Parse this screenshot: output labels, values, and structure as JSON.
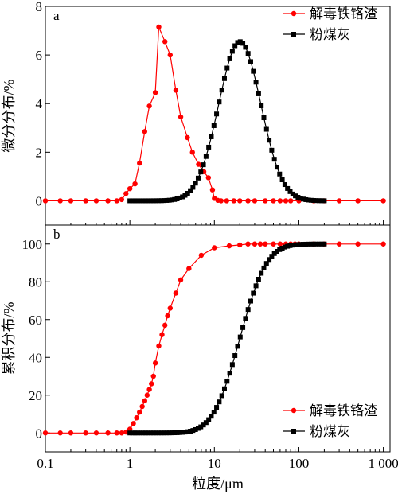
{
  "chart_data": [
    {
      "type": "line",
      "panel_label": "a",
      "ylabel": "微分分布/%",
      "xscale": "log",
      "xlim": [
        0.1,
        1200
      ],
      "ylim": [
        -1,
        8
      ],
      "yticks": [
        0,
        2,
        4,
        6,
        8
      ],
      "legend_position": "top-right",
      "series": [
        {
          "name": "解毒铁铬渣",
          "color": "#ff0000",
          "marker": "circle",
          "x": [
            0.1,
            0.15,
            0.2,
            0.3,
            0.4,
            0.55,
            0.7,
            0.8,
            0.9,
            1.0,
            1.15,
            1.3,
            1.5,
            1.7,
            2.0,
            2.2,
            2.6,
            3.0,
            3.5,
            4.0,
            4.8,
            5.5,
            6.5,
            7.5,
            8.5,
            9.5,
            10,
            11,
            12,
            14,
            17,
            20,
            25,
            30,
            40,
            50,
            60,
            70,
            80,
            100,
            150,
            200,
            300,
            500,
            1000
          ],
          "y": [
            0,
            0,
            0,
            0,
            0,
            0,
            0,
            0.05,
            0.3,
            0.5,
            0.7,
            1.55,
            2.85,
            3.9,
            4.45,
            7.15,
            6.55,
            6.0,
            4.55,
            3.45,
            2.6,
            2.0,
            1.5,
            1.2,
            0.95,
            0.45,
            0.1,
            0.02,
            0,
            0,
            0,
            0,
            0,
            0,
            0,
            0,
            0,
            0,
            0,
            0,
            0,
            0,
            0,
            0,
            0
          ]
        },
        {
          "name": "粉煤灰",
          "color": "#000000",
          "marker": "square",
          "mu": 20,
          "sigma_ln": 0.575,
          "peak": 6.55,
          "n_points": 75
        }
      ]
    },
    {
      "type": "line",
      "panel_label": "b",
      "ylabel": "累积分布/%",
      "xlabel": "粒度/μm",
      "xscale": "log",
      "xlim": [
        0.1,
        1200
      ],
      "ylim": [
        -10,
        110
      ],
      "yticks": [
        0,
        20,
        40,
        60,
        80,
        100
      ],
      "xticks": [
        0.1,
        1,
        10,
        100,
        1000
      ],
      "xticklabels": [
        "0.1",
        "1",
        "10",
        "100",
        "1 000"
      ],
      "legend_position": "bottom-right",
      "series": [
        {
          "name": "解毒铁铬渣",
          "color": "#ff0000",
          "marker": "circle",
          "x": [
            0.1,
            0.15,
            0.2,
            0.3,
            0.4,
            0.55,
            0.7,
            0.8,
            0.9,
            1.0,
            1.1,
            1.2,
            1.3,
            1.4,
            1.5,
            1.6,
            1.7,
            1.8,
            1.9,
            2.0,
            2.2,
            2.4,
            2.6,
            2.8,
            3.0,
            3.5,
            4.0,
            5.0,
            7.0,
            10,
            15,
            20,
            25,
            30,
            35,
            40,
            50,
            60,
            70,
            80,
            90,
            100,
            150,
            200,
            300,
            500,
            1000
          ],
          "y": [
            0,
            0,
            0,
            0,
            0,
            0,
            0,
            0,
            0.5,
            2,
            5,
            8,
            11,
            14,
            17,
            20,
            23,
            26,
            30,
            37,
            46,
            52,
            57,
            62,
            66,
            74,
            81,
            87,
            94,
            98,
            99,
            99.5,
            100,
            100,
            100,
            100,
            100,
            100,
            100,
            100,
            100,
            100,
            100,
            100,
            100,
            100,
            100
          ]
        },
        {
          "name": "粉煤灰",
          "color": "#000000",
          "marker": "square",
          "mu": 20,
          "sigma_ln": 0.575,
          "n_points": 75
        }
      ]
    }
  ]
}
